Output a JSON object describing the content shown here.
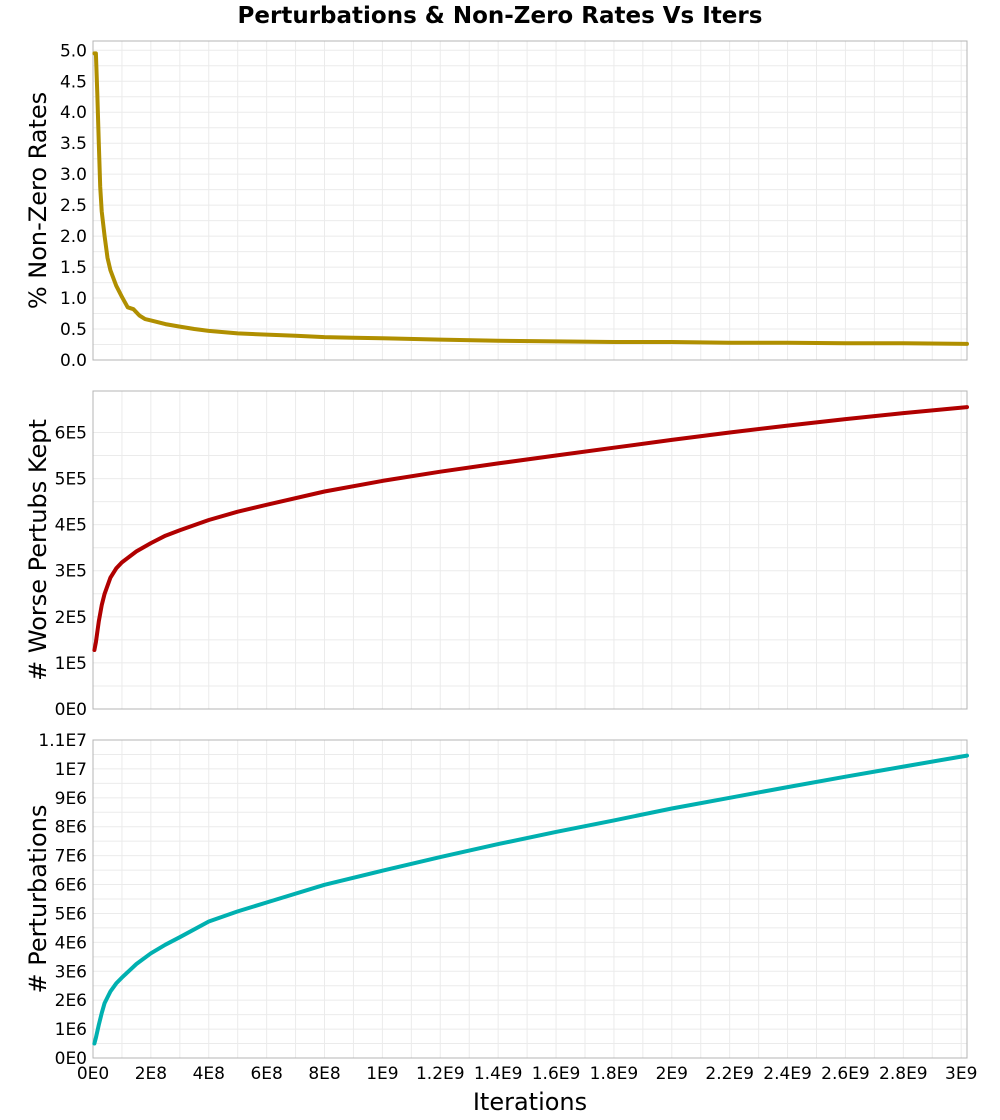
{
  "chart_data": {
    "title": "Perturbations & Non-Zero Rates Vs Iters",
    "xlabel": "Iterations",
    "xlim": [
      0,
      3020000000
    ],
    "xticks": [
      0,
      200000000,
      400000000,
      600000000,
      800000000,
      1000000000,
      1200000000,
      1400000000,
      1600000000,
      1800000000,
      2000000000,
      2200000000,
      2400000000,
      2600000000,
      2800000000,
      3000000000
    ],
    "xtick_labels": [
      "0E0",
      "2E8",
      "4E8",
      "6E8",
      "8E8",
      "1E9",
      "1.2E9",
      "1.4E9",
      "1.6E9",
      "1.8E9",
      "2E9",
      "2.2E9",
      "2.4E9",
      "2.6E9",
      "2.8E9",
      "3E9"
    ],
    "subplots": [
      {
        "type": "line",
        "ylabel": "% Non-Zero Rates",
        "ylim": [
          0,
          5.15
        ],
        "yticks": [
          0,
          0.5,
          1.0,
          1.5,
          2.0,
          2.5,
          3.0,
          3.5,
          4.0,
          4.5,
          5.0
        ],
        "ytick_labels": [
          "0.0",
          "0.5",
          "1.0",
          "1.5",
          "2.0",
          "2.5",
          "3.0",
          "3.5",
          "4.0",
          "4.5",
          "5.0"
        ],
        "color": "#b08f00",
        "x": [
          5000000,
          10000000,
          15000000,
          20000000,
          25000000,
          30000000,
          40000000,
          50000000,
          60000000,
          80000000,
          100000000,
          120000000,
          140000000,
          160000000,
          180000000,
          200000000,
          250000000,
          300000000,
          350000000,
          400000000,
          450000000,
          500000000,
          600000000,
          700000000,
          800000000,
          900000000,
          1000000000,
          1200000000,
          1400000000,
          1600000000,
          1800000000,
          2000000000,
          2200000000,
          2400000000,
          2600000000,
          2800000000,
          3020000000
        ],
        "y": [
          4.95,
          4.95,
          4.3,
          3.5,
          2.8,
          2.4,
          2.0,
          1.65,
          1.45,
          1.2,
          1.02,
          0.85,
          0.82,
          0.72,
          0.66,
          0.64,
          0.58,
          0.54,
          0.5,
          0.47,
          0.45,
          0.43,
          0.41,
          0.39,
          0.37,
          0.36,
          0.35,
          0.33,
          0.31,
          0.3,
          0.29,
          0.29,
          0.28,
          0.28,
          0.27,
          0.27,
          0.26
        ]
      },
      {
        "type": "line",
        "ylabel": "# Worse Pertubs Kept",
        "ylim": [
          0,
          690000
        ],
        "yticks": [
          0,
          100000,
          200000,
          300000,
          400000,
          500000,
          600000
        ],
        "ytick_labels": [
          "0E0",
          "1E5",
          "2E5",
          "3E5",
          "4E5",
          "5E5",
          "6E5"
        ],
        "color": "#b00000",
        "x": [
          5000000,
          10000000,
          20000000,
          30000000,
          40000000,
          60000000,
          80000000,
          100000000,
          150000000,
          200000000,
          250000000,
          300000000,
          400000000,
          500000000,
          600000000,
          800000000,
          1000000000,
          1200000000,
          1400000000,
          1600000000,
          1800000000,
          2000000000,
          2200000000,
          2400000000,
          2600000000,
          2800000000,
          3020000000
        ],
        "y": [
          128000,
          145000,
          190000,
          225000,
          250000,
          285000,
          305000,
          318000,
          342000,
          360000,
          376000,
          388000,
          410000,
          428000,
          443000,
          472000,
          495000,
          515000,
          533000,
          550000,
          567000,
          584000,
          600000,
          615000,
          629000,
          642000,
          655000
        ]
      },
      {
        "type": "line",
        "ylabel": "# Perturbations",
        "ylim": [
          0,
          11000000
        ],
        "yticks": [
          0,
          1000000,
          2000000,
          3000000,
          4000000,
          5000000,
          6000000,
          7000000,
          8000000,
          9000000,
          10000000,
          11000000
        ],
        "ytick_labels": [
          "0E0",
          "1E6",
          "2E6",
          "3E6",
          "4E6",
          "5E6",
          "6E6",
          "7E6",
          "8E6",
          "9E6",
          "1E7",
          "1.1E7"
        ],
        "color": "#00b0b0",
        "x": [
          5000000,
          10000000,
          20000000,
          30000000,
          40000000,
          60000000,
          80000000,
          100000000,
          150000000,
          200000000,
          250000000,
          300000000,
          400000000,
          500000000,
          600000000,
          800000000,
          1000000000,
          1200000000,
          1400000000,
          1600000000,
          1800000000,
          2000000000,
          2200000000,
          2400000000,
          2600000000,
          2800000000,
          3020000000
        ],
        "y": [
          500000,
          700000,
          1150000,
          1550000,
          1900000,
          2300000,
          2580000,
          2780000,
          3250000,
          3620000,
          3920000,
          4180000,
          4720000,
          5070000,
          5380000,
          5990000,
          6480000,
          6950000,
          7400000,
          7820000,
          8220000,
          8630000,
          9000000,
          9370000,
          9730000,
          10080000,
          10460000
        ]
      }
    ]
  }
}
